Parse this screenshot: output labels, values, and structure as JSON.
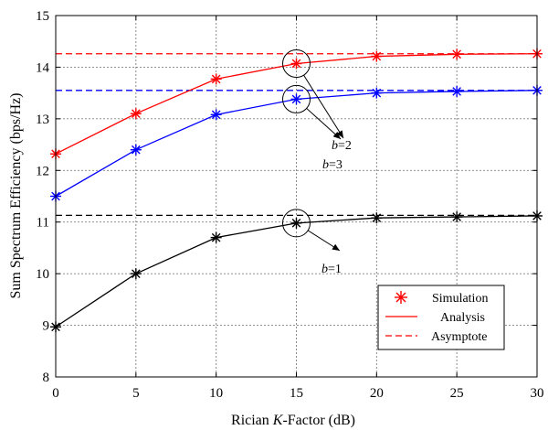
{
  "chart_data": {
    "type": "line",
    "xlabel_prefix": "Rician ",
    "xlabel_var": "K",
    "xlabel_suffix": "-Factor (dB)",
    "ylabel": "Sum Spectrum Efficiency (bps/Hz)",
    "xlim": [
      0,
      30
    ],
    "ylim": [
      8,
      15
    ],
    "xticks": [
      0,
      5,
      10,
      15,
      20,
      25,
      30
    ],
    "yticks": [
      8,
      9,
      10,
      11,
      12,
      13,
      14,
      15
    ],
    "grid": true,
    "legend_position": "bottom-right",
    "legend": {
      "simulation": "Simulation",
      "analysis": "Analysis",
      "asymptote": "Asymptote"
    },
    "x": [
      0,
      5,
      10,
      15,
      20,
      25,
      30
    ],
    "series": [
      {
        "id": "b3",
        "label_var": "b",
        "label_value": "=3",
        "color": "#ff0000",
        "values": [
          12.32,
          13.1,
          13.77,
          14.07,
          14.21,
          14.25,
          14.26
        ],
        "asymptote": 14.26
      },
      {
        "id": "b2",
        "label_var": "b",
        "label_value": "=2",
        "color": "#0000ff",
        "values": [
          11.5,
          12.4,
          13.08,
          13.38,
          13.5,
          13.53,
          13.55
        ],
        "asymptote": 13.55
      },
      {
        "id": "b1",
        "label_var": "b",
        "label_value": "=1",
        "color": "#000000",
        "values": [
          8.97,
          10.0,
          10.7,
          10.98,
          11.08,
          11.1,
          11.12
        ],
        "asymptote": 11.13
      }
    ]
  }
}
